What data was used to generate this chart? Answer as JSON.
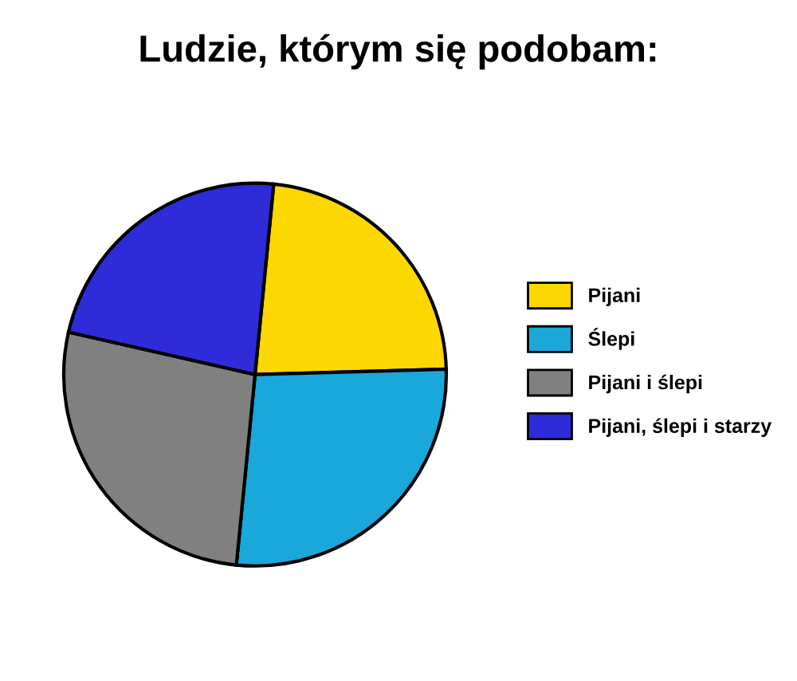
{
  "chart_data": {
    "type": "pie",
    "title": "Ludzie, którym się podobam:",
    "categories": [
      "Pijani",
      "Ślepi",
      "Pijani i ślepi",
      "Pijani, ślepi i starzy"
    ],
    "values": [
      23,
      27,
      27,
      23
    ],
    "colors": [
      "#fdd800",
      "#1aa7d9",
      "#808080",
      "#2e2bd9"
    ],
    "legend": "right"
  }
}
